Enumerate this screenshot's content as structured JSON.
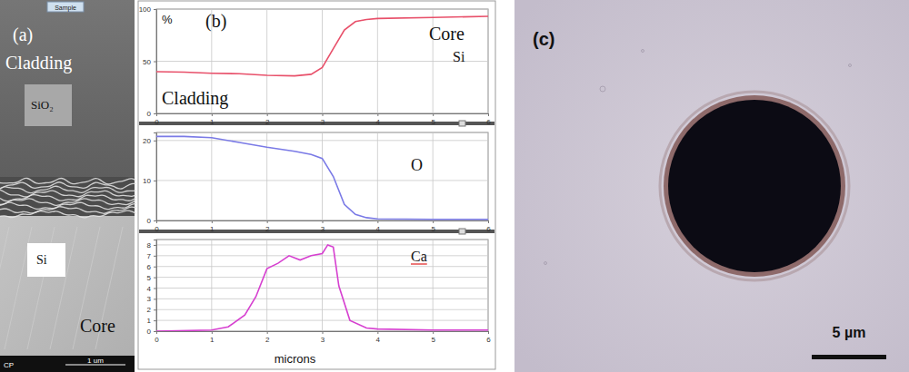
{
  "panel_a": {
    "label": "(a)",
    "tag": "Sample",
    "cladding": "Cladding",
    "box_top": "SiO₂",
    "box_bottom": "Si",
    "core": "Core",
    "footer": "CP",
    "scale_bar": "1 um"
  },
  "chart_data": [
    {
      "type": "line",
      "panel_label": "(b)",
      "y_label": "%",
      "annotations": [
        "Cladding",
        "Core"
      ],
      "x": [
        0,
        0.5,
        1,
        1.5,
        2,
        2.5,
        2.8,
        3,
        3.2,
        3.4,
        3.6,
        3.8,
        4,
        5,
        6
      ],
      "series": [
        {
          "name": "Si",
          "color": "#e8506a",
          "values": [
            40,
            39.5,
            38.5,
            38,
            36.5,
            36,
            37.5,
            44,
            62,
            80,
            88,
            90,
            91,
            92,
            93
          ]
        }
      ],
      "xlim": [
        0,
        6
      ],
      "xticks": [
        0,
        1,
        2,
        3,
        4,
        5,
        6
      ],
      "ylim": [
        0,
        100
      ],
      "yticks": [
        0,
        50,
        100
      ],
      "grid": true
    },
    {
      "type": "line",
      "x": [
        0,
        0.5,
        1,
        1.5,
        2,
        2.5,
        2.8,
        3,
        3.2,
        3.4,
        3.6,
        3.8,
        4,
        5,
        6
      ],
      "series": [
        {
          "name": "O",
          "color": "#7a7ae6",
          "values": [
            21,
            21,
            20.7,
            19.5,
            18.3,
            17.3,
            16.5,
            15.5,
            11,
            4,
            1.5,
            0.7,
            0.4,
            0.3,
            0.3
          ]
        }
      ],
      "xlim": [
        0,
        6
      ],
      "xticks": [
        0,
        1,
        2,
        3,
        4,
        5,
        6
      ],
      "ylim": [
        0,
        22
      ],
      "yticks": [
        0,
        10,
        20
      ],
      "grid": true
    },
    {
      "type": "line",
      "x_label": "microns",
      "x": [
        0,
        1,
        1.3,
        1.6,
        1.8,
        2,
        2.2,
        2.4,
        2.6,
        2.8,
        3,
        3.1,
        3.2,
        3.3,
        3.5,
        3.8,
        4,
        5,
        6
      ],
      "series": [
        {
          "name": "Ca",
          "color": "#d640d0",
          "values": [
            0,
            0.1,
            0.4,
            1.5,
            3.2,
            5.8,
            6.3,
            7,
            6.6,
            7,
            7.2,
            8,
            7.8,
            4.2,
            1,
            0.3,
            0.2,
            0.1,
            0.1
          ]
        }
      ],
      "xlim": [
        0,
        6
      ],
      "xticks": [
        0,
        1,
        2,
        3,
        4,
        5,
        6
      ],
      "ylim": [
        0,
        8.5
      ],
      "yticks": [
        0,
        1,
        2,
        3,
        4,
        5,
        6,
        7,
        8
      ],
      "grid": true
    }
  ],
  "panel_c": {
    "label": "(c)",
    "scale_bar": "5 µm"
  }
}
